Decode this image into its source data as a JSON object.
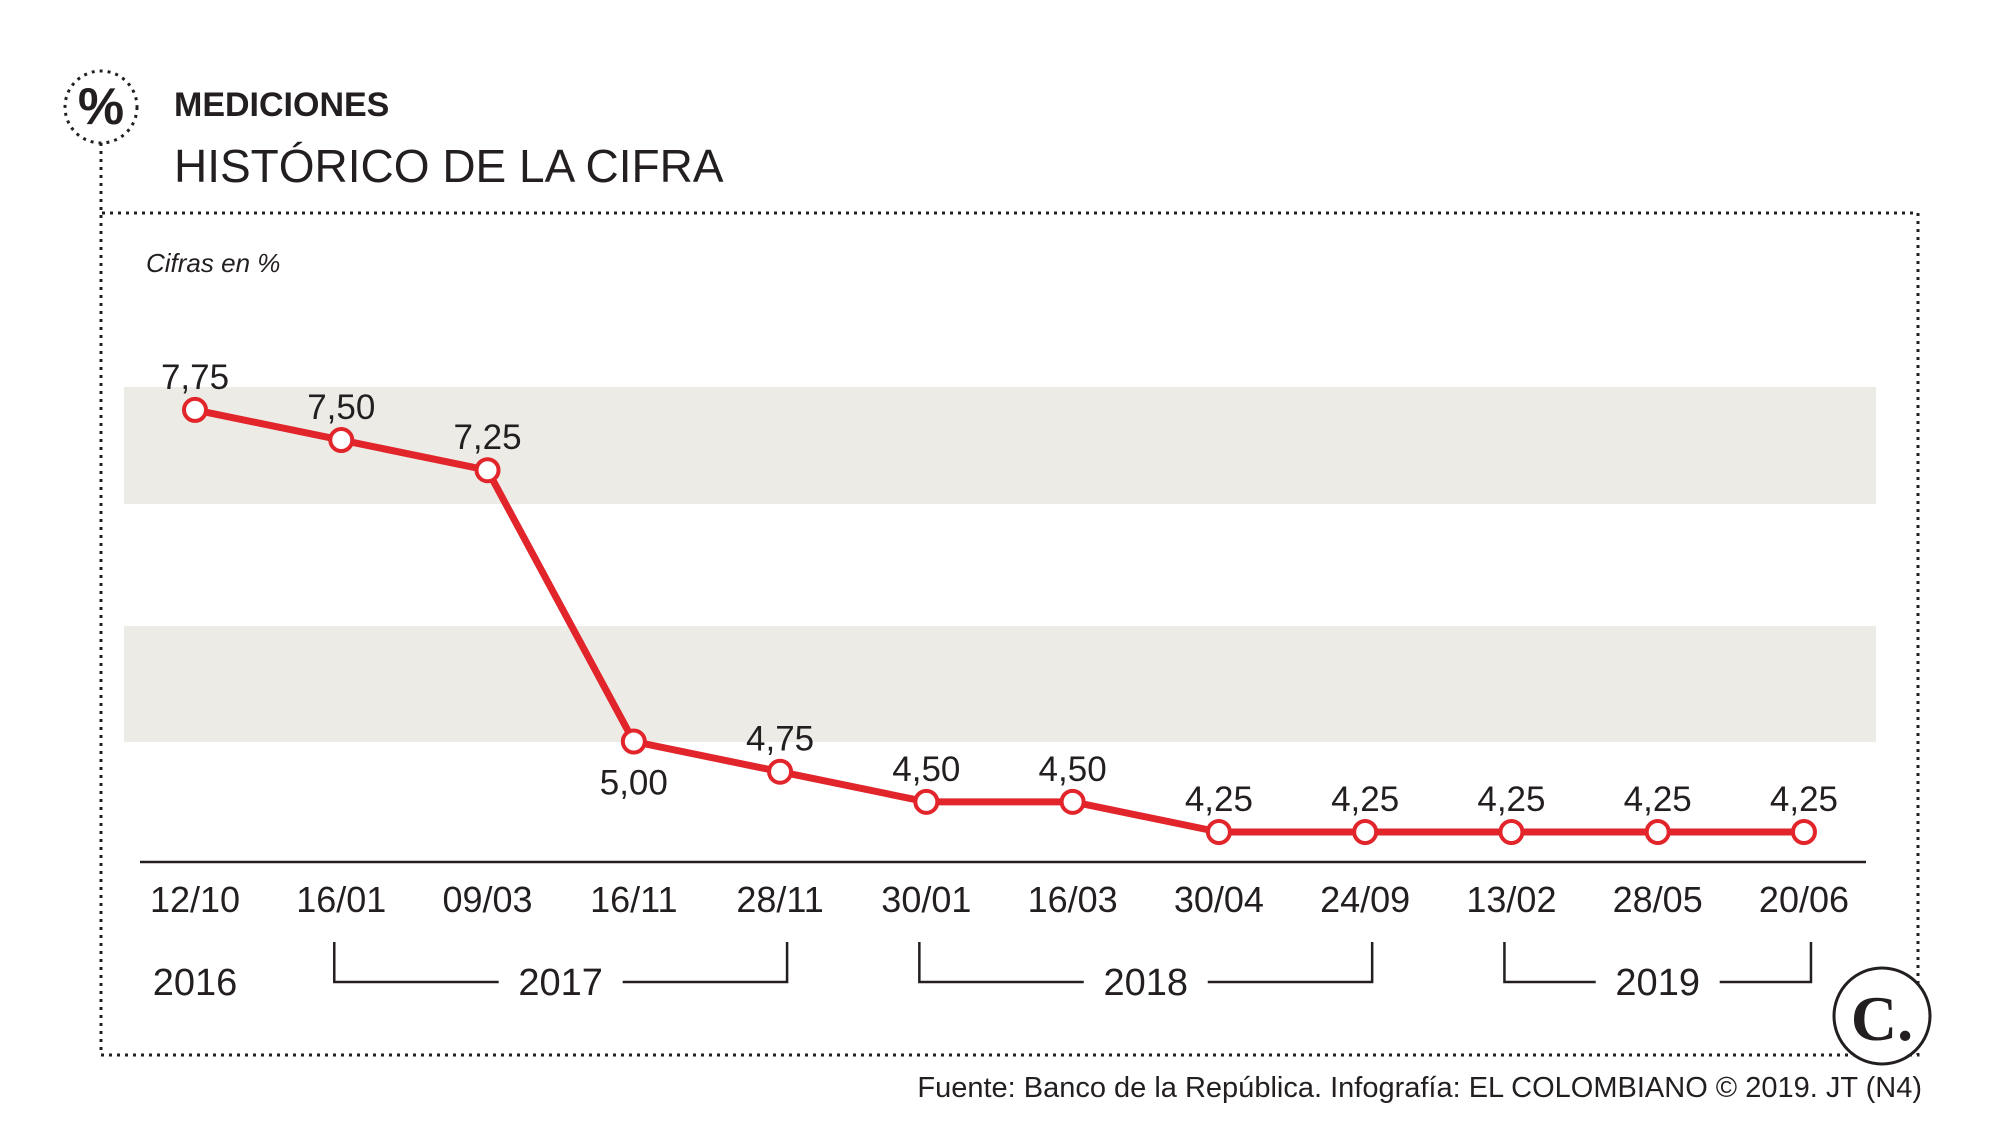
{
  "header": {
    "kicker": "MEDICIONES",
    "title": "HISTÓRICO DE LA CIFRA",
    "badge_symbol": "%"
  },
  "chart_data": {
    "type": "line",
    "title": "HISTÓRICO DE LA CIFRA",
    "unit_label": "Cifras en %",
    "categories": [
      "12/10",
      "16/01",
      "09/03",
      "16/11",
      "28/11",
      "30/01",
      "16/03",
      "30/04",
      "24/09",
      "13/02",
      "28/05",
      "20/06"
    ],
    "values": [
      7.75,
      7.5,
      7.25,
      5.0,
      4.75,
      4.5,
      4.5,
      4.25,
      4.25,
      4.25,
      4.25,
      4.25
    ],
    "value_labels": [
      "7,75",
      "7,50",
      "7,25",
      "5,00",
      "4,75",
      "4,50",
      "4,50",
      "4,25",
      "4,25",
      "4,25",
      "4,25",
      "4,25"
    ],
    "years": [
      {
        "label": "2016",
        "from": 0,
        "to": 0
      },
      {
        "label": "2017",
        "from": 1,
        "to": 4
      },
      {
        "label": "2018",
        "from": 5,
        "to": 8
      },
      {
        "label": "2019",
        "from": 9,
        "to": 11
      }
    ],
    "ylim": [
      4.0,
      8.0
    ],
    "grid": false,
    "line_color": "#e2242b",
    "band_color": "#ecebe5"
  },
  "footer": {
    "source": "Fuente: Banco de la República. Infografía: EL COLOMBIANO © 2019. JT (N4)",
    "logo_letter": "C."
  }
}
